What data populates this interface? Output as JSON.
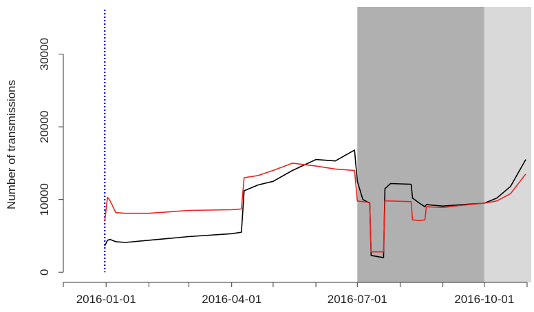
{
  "chart_data": {
    "type": "line",
    "ylabel": "Number of transmissions",
    "x": [
      "2015-12-31",
      "2016-01-02",
      "2016-01-04",
      "2016-01-08",
      "2016-01-15",
      "2016-02-01",
      "2016-03-01",
      "2016-04-01",
      "2016-04-08",
      "2016-04-10",
      "2016-04-20",
      "2016-05-01",
      "2016-05-15",
      "2016-06-01",
      "2016-06-15",
      "2016-06-29",
      "2016-07-01",
      "2016-07-05",
      "2016-07-10",
      "2016-07-11",
      "2016-07-20",
      "2016-07-21",
      "2016-07-25",
      "2016-08-09",
      "2016-08-10",
      "2016-08-15",
      "2016-08-19",
      "2016-08-20",
      "2016-09-01",
      "2016-09-15",
      "2016-10-01",
      "2016-10-10",
      "2016-10-20",
      "2016-10-31"
    ],
    "series": [
      {
        "color": "#000000",
        "values": [
          3600,
          4400,
          4500,
          4200,
          4100,
          4400,
          4900,
          5300,
          5500,
          11200,
          12000,
          12500,
          14000,
          15500,
          15300,
          16800,
          12500,
          10000,
          9500,
          2300,
          2000,
          11500,
          12200,
          12100,
          10200,
          9500,
          9000,
          9300,
          9100,
          9300,
          9500,
          10200,
          11800,
          15500
        ]
      },
      {
        "color": "#e8231f",
        "values": [
          7000,
          10300,
          9800,
          8200,
          8100,
          8100,
          8500,
          8600,
          8700,
          13000,
          13300,
          14000,
          15000,
          14600,
          14200,
          14000,
          9800,
          9700,
          9600,
          2800,
          2800,
          9800,
          9800,
          9700,
          7200,
          7100,
          7200,
          9000,
          8900,
          9200,
          9500,
          9800,
          10800,
          13500
        ]
      }
    ],
    "xlim": [
      "2015-12-01",
      "2016-11-04"
    ],
    "xticks": [
      "2016-01-01",
      "2016-04-01",
      "2016-07-01",
      "2016-10-01"
    ],
    "xminor_ticks": [
      "2015-12-01",
      "2016-02-01",
      "2016-03-01",
      "2016-05-01",
      "2016-06-01",
      "2016-08-01",
      "2016-09-01",
      "2016-11-01"
    ],
    "ylim": [
      -1400,
      36500
    ],
    "yticks": [
      0,
      10000,
      20000,
      30000
    ],
    "shaded_regions": [
      {
        "start": "2016-07-01",
        "end": "2016-10-01",
        "color": "#b0b0b0"
      },
      {
        "start": "2016-10-01",
        "end": "2016-11-04",
        "color": "#d9d9d9"
      }
    ],
    "vline": {
      "x": "2015-12-31",
      "color": "#1a1acc"
    }
  }
}
